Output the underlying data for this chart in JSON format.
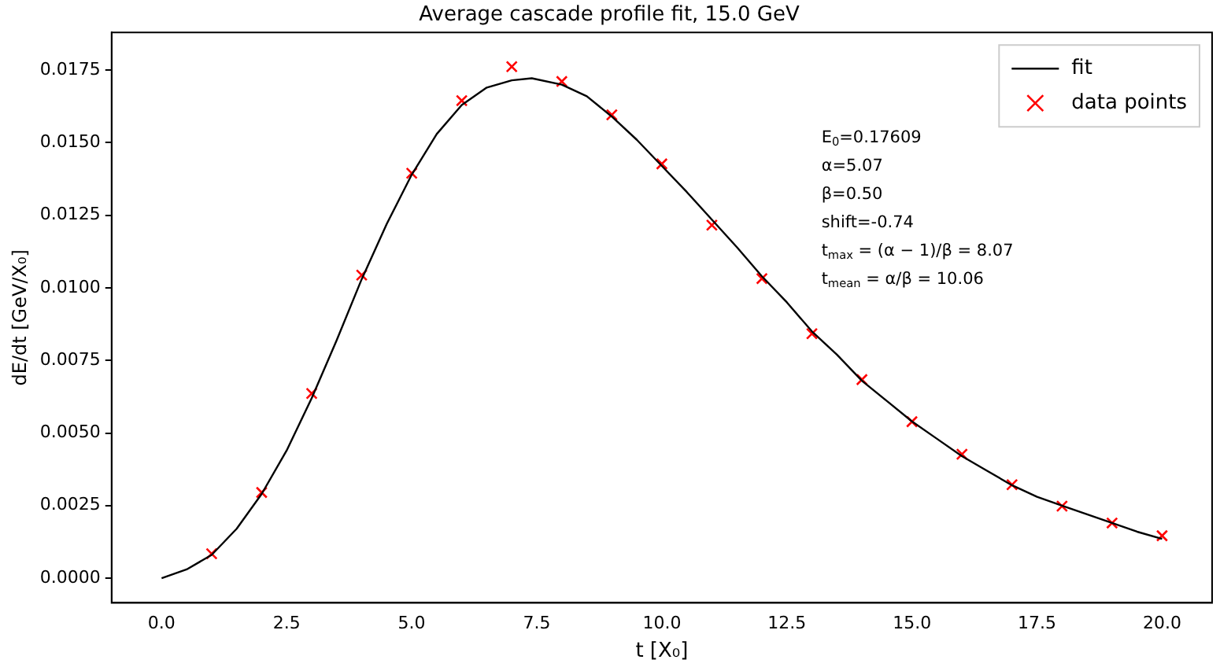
{
  "chart_data": {
    "type": "line",
    "title": "Average cascade profile fit, 15.0 GeV",
    "xlabel": "t [X₀]",
    "ylabel": "dE/dt [GeV/X₀]",
    "xlim": [
      -1.0,
      21.0
    ],
    "ylim": [
      -0.00085,
      0.0188
    ],
    "xticks": [
      {
        "value": 0,
        "label": "0.0"
      },
      {
        "value": 2.5,
        "label": "2.5"
      },
      {
        "value": 5,
        "label": "5.0"
      },
      {
        "value": 7.5,
        "label": "7.5"
      },
      {
        "value": 10,
        "label": "10.0"
      },
      {
        "value": 12.5,
        "label": "12.5"
      },
      {
        "value": 15,
        "label": "15.0"
      },
      {
        "value": 17.5,
        "label": "17.5"
      },
      {
        "value": 20,
        "label": "20.0"
      }
    ],
    "yticks": [
      {
        "value": 0,
        "label": "0.0000"
      },
      {
        "value": 0.0025,
        "label": "0.0025"
      },
      {
        "value": 0.005,
        "label": "0.0050"
      },
      {
        "value": 0.0075,
        "label": "0.0075"
      },
      {
        "value": 0.01,
        "label": "0.0100"
      },
      {
        "value": 0.0125,
        "label": "0.0125"
      },
      {
        "value": 0.015,
        "label": "0.0150"
      },
      {
        "value": 0.0175,
        "label": "0.0175"
      }
    ],
    "grid": false,
    "legend": "top right",
    "series": [
      {
        "name": "fit",
        "color": "#000000",
        "marker": "none",
        "line_style": "solid",
        "x": [
          0,
          0.5,
          1,
          1.5,
          2,
          2.5,
          3,
          3.5,
          4,
          4.5,
          5,
          5.5,
          6,
          6.5,
          7,
          7.4,
          8,
          8.5,
          9,
          9.5,
          10,
          10.5,
          11,
          11.5,
          12,
          12.5,
          13,
          13.5,
          14,
          14.5,
          15,
          15.5,
          16,
          16.5,
          17,
          17.5,
          18,
          18.5,
          19,
          19.5,
          20
        ],
        "values": [
          0.0,
          0.0003,
          0.0008,
          0.0017,
          0.0029,
          0.0044,
          0.0062,
          0.0082,
          0.0103,
          0.0122,
          0.0139,
          0.0153,
          0.0163,
          0.0169,
          0.01715,
          0.01722,
          0.017,
          0.0166,
          0.0159,
          0.0151,
          0.0142,
          0.0133,
          0.01235,
          0.0114,
          0.0104,
          0.0095,
          0.0085,
          0.0077,
          0.0068,
          0.0061,
          0.0054,
          0.0048,
          0.0042,
          0.0037,
          0.0032,
          0.0028,
          0.0025,
          0.0022,
          0.0019,
          0.0016,
          0.00135
        ]
      },
      {
        "name": "data points",
        "type": "scatter",
        "color": "#ff0000",
        "marker": "cross",
        "x": [
          1,
          2,
          3,
          4,
          5,
          6,
          7,
          8,
          9,
          10,
          11,
          12,
          13,
          14,
          15,
          16,
          17,
          18,
          19,
          20
        ],
        "values": [
          0.00084,
          0.00295,
          0.00636,
          0.01044,
          0.01395,
          0.01645,
          0.01762,
          0.01711,
          0.01596,
          0.01427,
          0.01216,
          0.01032,
          0.00842,
          0.00684,
          0.00539,
          0.00427,
          0.00322,
          0.00248,
          0.0019,
          0.00146
        ]
      }
    ],
    "annotations": [
      "E$_{0}$=0.17609",
      "α=5.07",
      "β=0.50",
      "shift=-0.74",
      "t$_{max}$ = (α − 1)/β = 8.07",
      "t$_{mean}$ = α/β = 10.06"
    ]
  }
}
